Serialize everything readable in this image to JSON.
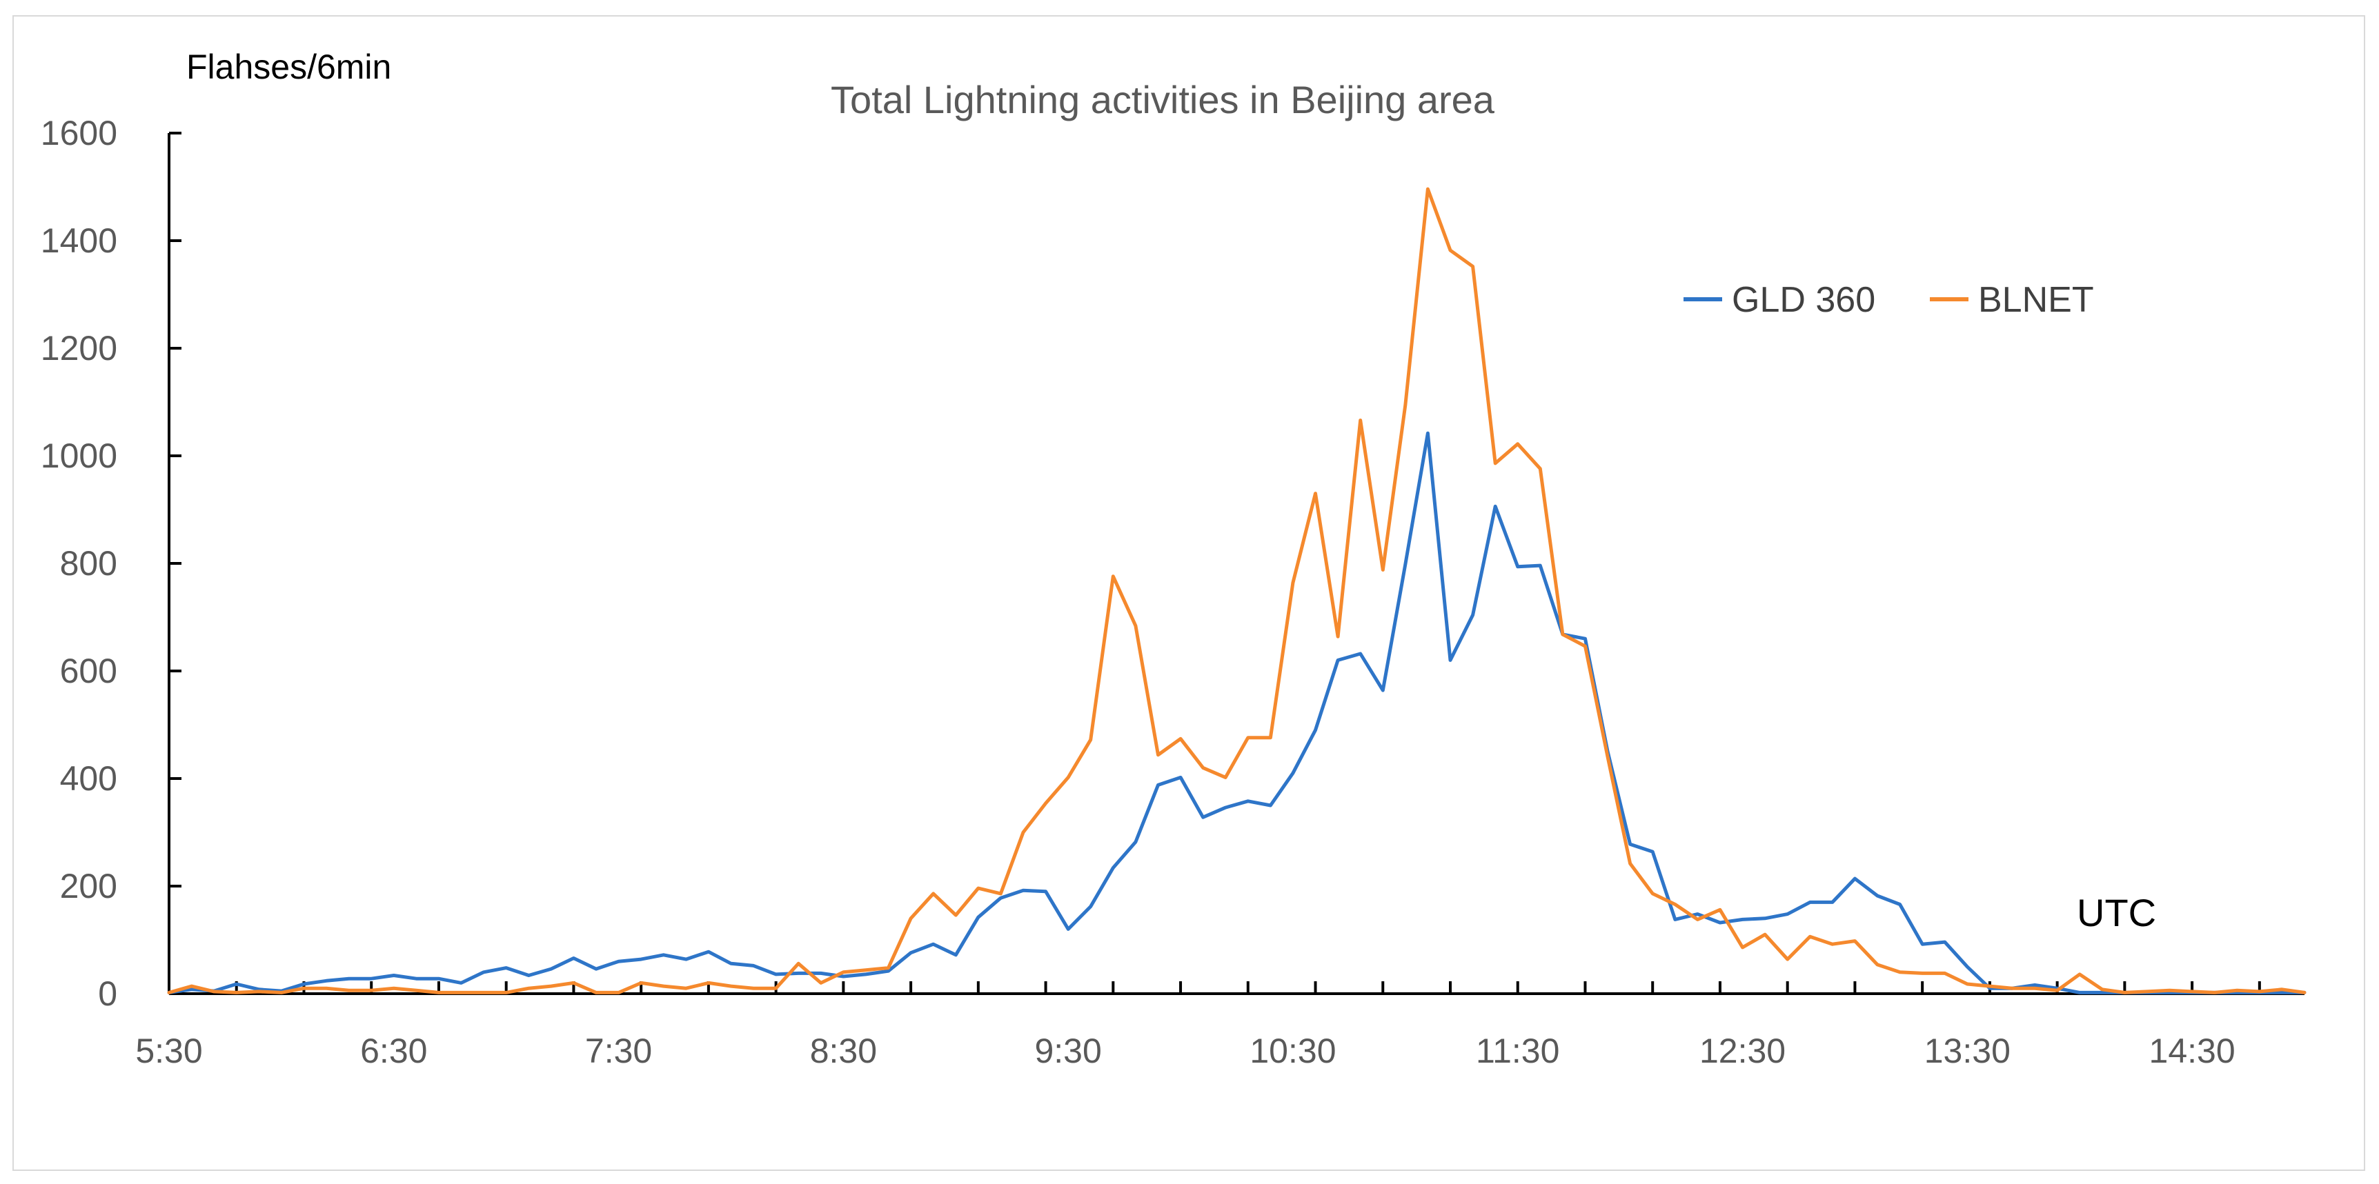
{
  "chart_data": {
    "type": "line",
    "title": "Total Lightning activities in Beijing area",
    "ylabel": "Flahses/6min",
    "xlabel": "UTC",
    "ylim": [
      0,
      1600
    ],
    "yticks": [
      0,
      200,
      400,
      600,
      800,
      1000,
      1200,
      1400,
      1600
    ],
    "xlim_minutes": [
      330,
      900
    ],
    "xtick_labels": [
      "5:30",
      "6:30",
      "7:30",
      "8:30",
      "9:30",
      "10:30",
      "11:30",
      "12:30",
      "13:30",
      "14:30"
    ],
    "x_step_minutes": 6,
    "x_start_minutes": 330,
    "legend_position": "top-right",
    "series": [
      {
        "name": "GLD 360",
        "color": "#2e75c8",
        "values": [
          2,
          8,
          5,
          18,
          8,
          5,
          18,
          24,
          28,
          28,
          34,
          28,
          28,
          20,
          40,
          48,
          34,
          46,
          66,
          46,
          60,
          64,
          72,
          64,
          78,
          56,
          52,
          36,
          38,
          38,
          32,
          36,
          42,
          76,
          92,
          72,
          142,
          178,
          192,
          190,
          120,
          162,
          234,
          282,
          388,
          402,
          328,
          346,
          358,
          350,
          410,
          490,
          620,
          632,
          564,
          798,
          1042,
          620,
          704,
          906,
          794,
          796,
          668,
          660,
          450,
          278,
          264,
          138,
          148,
          132,
          138,
          140,
          148,
          170,
          170,
          214,
          182,
          166,
          92,
          96,
          50,
          10,
          10,
          16,
          10,
          2,
          2,
          2,
          2,
          2,
          2,
          2,
          2,
          2,
          2,
          2
        ]
      },
      {
        "name": "BLNET",
        "color": "#f5892d",
        "values": [
          2,
          14,
          4,
          2,
          4,
          2,
          10,
          10,
          6,
          6,
          10,
          6,
          2,
          2,
          2,
          2,
          10,
          14,
          20,
          2,
          2,
          20,
          14,
          10,
          20,
          14,
          10,
          10,
          56,
          20,
          40,
          44,
          48,
          140,
          186,
          146,
          196,
          186,
          300,
          354,
          402,
          472,
          776,
          684,
          444,
          474,
          420,
          402,
          476,
          476,
          764,
          930,
          664,
          1066,
          788,
          1094,
          1496,
          1382,
          1352,
          986,
          1022,
          976,
          668,
          646,
          440,
          242,
          186,
          166,
          138,
          156,
          86,
          110,
          64,
          106,
          92,
          98,
          54,
          40,
          38,
          38,
          18,
          14,
          10,
          10,
          6,
          36,
          8,
          2,
          4,
          6,
          4,
          2,
          6,
          4,
          8,
          2
        ]
      }
    ]
  }
}
